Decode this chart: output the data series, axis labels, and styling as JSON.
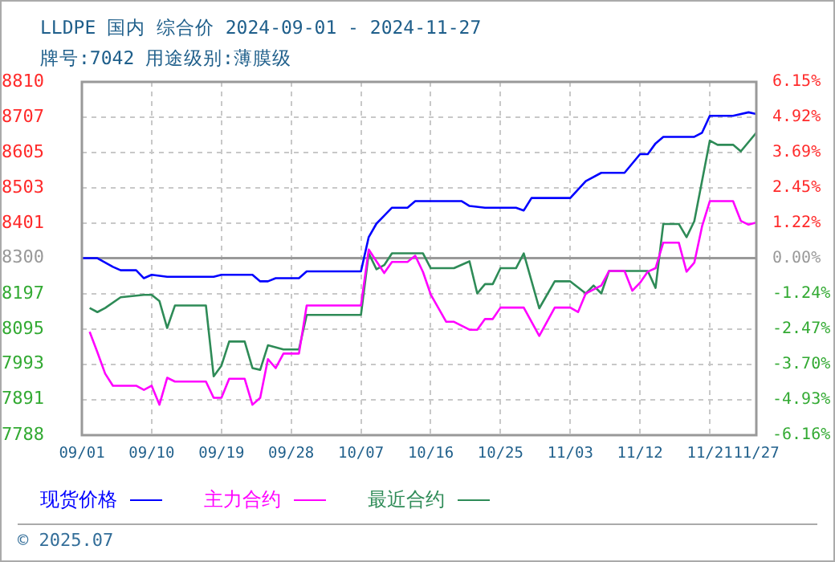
{
  "chart_data": {
    "type": "line",
    "title": "LLDPE 国内 综合价 2024-09-01 - 2024-11-27",
    "subtitle": "牌号:7042 用途级别:薄膜级",
    "xlim": [
      "2024-09-01",
      "2024-11-27"
    ],
    "xticks": [
      {
        "value": "2024-09-01",
        "label": "09/01"
      },
      {
        "value": "2024-09-10",
        "label": "09/10"
      },
      {
        "value": "2024-09-19",
        "label": "09/19"
      },
      {
        "value": "2024-09-28",
        "label": "09/28"
      },
      {
        "value": "2024-10-07",
        "label": "10/07"
      },
      {
        "value": "2024-10-16",
        "label": "10/16"
      },
      {
        "value": "2024-10-25",
        "label": "10/25"
      },
      {
        "value": "2024-11-03",
        "label": "11/03"
      },
      {
        "value": "2024-11-12",
        "label": "11/12"
      },
      {
        "value": "2024-11-21",
        "label": "11/21"
      },
      {
        "value": "2024-11-27",
        "label": "11/27"
      }
    ],
    "ylim": [
      7788,
      8810
    ],
    "yticks": [
      8810,
      8707,
      8605,
      8503,
      8401,
      8300,
      8197,
      8095,
      7993,
      7891,
      7788
    ],
    "y2lim": [
      -6.16,
      6.15
    ],
    "y2ticks": [
      {
        "value": 6.15,
        "label": "6.15%"
      },
      {
        "value": 4.92,
        "label": "4.92%"
      },
      {
        "value": 3.69,
        "label": "3.69%"
      },
      {
        "value": 2.45,
        "label": "2.45%"
      },
      {
        "value": 1.22,
        "label": "1.22%"
      },
      {
        "value": 0,
        "label": "0.00%"
      },
      {
        "value": -1.24,
        "label": "-1.24%"
      },
      {
        "value": -2.47,
        "label": "-2.47%"
      },
      {
        "value": -3.7,
        "label": "-3.70%"
      },
      {
        "value": -4.93,
        "label": "-4.93%"
      },
      {
        "value": -6.16,
        "label": "-6.16%"
      }
    ],
    "ref_lines": [
      {
        "axis": "y",
        "value": 8300,
        "color": "#999999"
      }
    ],
    "grid": true,
    "legend": "bottom",
    "marker": "none",
    "line_style": "solid",
    "series": [
      {
        "name": "现货价格",
        "color": "#0000ff",
        "x": [
          "2024-09-01",
          "2024-09-03",
          "2024-09-05",
          "2024-09-06",
          "2024-09-08",
          "2024-09-09",
          "2024-09-10",
          "2024-09-12",
          "2024-09-18",
          "2024-09-19",
          "2024-09-23",
          "2024-09-24",
          "2024-09-25",
          "2024-09-26",
          "2024-09-29",
          "2024-09-30",
          "2024-10-07",
          "2024-10-08",
          "2024-10-09",
          "2024-10-10",
          "2024-10-11",
          "2024-10-13",
          "2024-10-14",
          "2024-10-20",
          "2024-10-21",
          "2024-10-23",
          "2024-10-27",
          "2024-10-28",
          "2024-10-29",
          "2024-11-03",
          "2024-11-05",
          "2024-11-07",
          "2024-11-10",
          "2024-11-12",
          "2024-11-13",
          "2024-11-14",
          "2024-11-15",
          "2024-11-19",
          "2024-11-20",
          "2024-11-21",
          "2024-11-24",
          "2024-11-26",
          "2024-11-27"
        ],
        "values": [
          8300,
          8300,
          8275,
          8265,
          8265,
          8242,
          8252,
          8246,
          8246,
          8252,
          8252,
          8233,
          8233,
          8242,
          8242,
          8262,
          8262,
          8361,
          8400,
          8423,
          8446,
          8446,
          8465,
          8465,
          8451,
          8446,
          8446,
          8438,
          8474,
          8474,
          8523,
          8547,
          8547,
          8601,
          8601,
          8632,
          8651,
          8651,
          8663,
          8712,
          8712,
          8722,
          8717
        ]
      },
      {
        "name": "主力合约",
        "color": "#ff00ff",
        "x": [
          "2024-09-02",
          "2024-09-03",
          "2024-09-04",
          "2024-09-05",
          "2024-09-08",
          "2024-09-09",
          "2024-09-10",
          "2024-09-11",
          "2024-09-12",
          "2024-09-13",
          "2024-09-17",
          "2024-09-18",
          "2024-09-19",
          "2024-09-20",
          "2024-09-22",
          "2024-09-23",
          "2024-09-24",
          "2024-09-25",
          "2024-09-26",
          "2024-09-27",
          "2024-09-29",
          "2024-09-30",
          "2024-10-07",
          "2024-10-08",
          "2024-10-09",
          "2024-10-10",
          "2024-10-11",
          "2024-10-13",
          "2024-10-14",
          "2024-10-15",
          "2024-10-16",
          "2024-10-18",
          "2024-10-19",
          "2024-10-21",
          "2024-10-22",
          "2024-10-23",
          "2024-10-24",
          "2024-10-25",
          "2024-10-28",
          "2024-10-30",
          "2024-11-01",
          "2024-11-03",
          "2024-11-04",
          "2024-11-05",
          "2024-11-07",
          "2024-11-08",
          "2024-11-10",
          "2024-11-11",
          "2024-11-12",
          "2024-11-13",
          "2024-11-14",
          "2024-11-15",
          "2024-11-17",
          "2024-11-18",
          "2024-11-19",
          "2024-11-20",
          "2024-11-21",
          "2024-11-24",
          "2024-11-25",
          "2024-11-26",
          "2024-11-27"
        ],
        "values": [
          8087,
          8028,
          7966,
          7931,
          7931,
          7919,
          7931,
          7876,
          7954,
          7943,
          7943,
          7896,
          7896,
          7951,
          7951,
          7876,
          7896,
          8008,
          7982,
          8024,
          8024,
          8163,
          8163,
          8325,
          8291,
          8257,
          8289,
          8289,
          8307,
          8260,
          8195,
          8116,
          8116,
          8093,
          8093,
          8124,
          8124,
          8157,
          8157,
          8075,
          8157,
          8157,
          8144,
          8198,
          8221,
          8263,
          8263,
          8206,
          8229,
          8261,
          8271,
          8345,
          8345,
          8261,
          8287,
          8392,
          8465,
          8465,
          8408,
          8397,
          8403
        ]
      },
      {
        "name": "最近合约",
        "color": "#2e8b57",
        "x": [
          "2024-09-02",
          "2024-09-03",
          "2024-09-04",
          "2024-09-06",
          "2024-09-09",
          "2024-09-10",
          "2024-09-11",
          "2024-09-12",
          "2024-09-13",
          "2024-09-17",
          "2024-09-18",
          "2024-09-19",
          "2024-09-20",
          "2024-09-22",
          "2024-09-23",
          "2024-09-24",
          "2024-09-25",
          "2024-09-27",
          "2024-09-29",
          "2024-09-30",
          "2024-10-07",
          "2024-10-08",
          "2024-10-09",
          "2024-10-10",
          "2024-10-11",
          "2024-10-15",
          "2024-10-16",
          "2024-10-19",
          "2024-10-21",
          "2024-10-22",
          "2024-10-23",
          "2024-10-24",
          "2024-10-25",
          "2024-10-27",
          "2024-10-28",
          "2024-10-30",
          "2024-11-01",
          "2024-11-03",
          "2024-11-05",
          "2024-11-06",
          "2024-11-07",
          "2024-11-08",
          "2024-11-13",
          "2024-11-14",
          "2024-11-15",
          "2024-11-17",
          "2024-11-18",
          "2024-11-19",
          "2024-11-21",
          "2024-11-22",
          "2024-11-24",
          "2024-11-25",
          "2024-11-27"
        ],
        "values": [
          8156,
          8144,
          8156,
          8187,
          8194,
          8194,
          8176,
          8098,
          8163,
          8163,
          7958,
          7989,
          8059,
          8059,
          7982,
          7977,
          8048,
          8036,
          8036,
          8136,
          8136,
          8314,
          8268,
          8280,
          8314,
          8314,
          8271,
          8271,
          8291,
          8198,
          8225,
          8225,
          8271,
          8271,
          8314,
          8155,
          8233,
          8233,
          8198,
          8221,
          8198,
          8263,
          8263,
          8214,
          8399,
          8399,
          8361,
          8407,
          8640,
          8628,
          8628,
          8609,
          8663
        ]
      }
    ],
    "annotations": [
      "© 2025.07"
    ]
  }
}
